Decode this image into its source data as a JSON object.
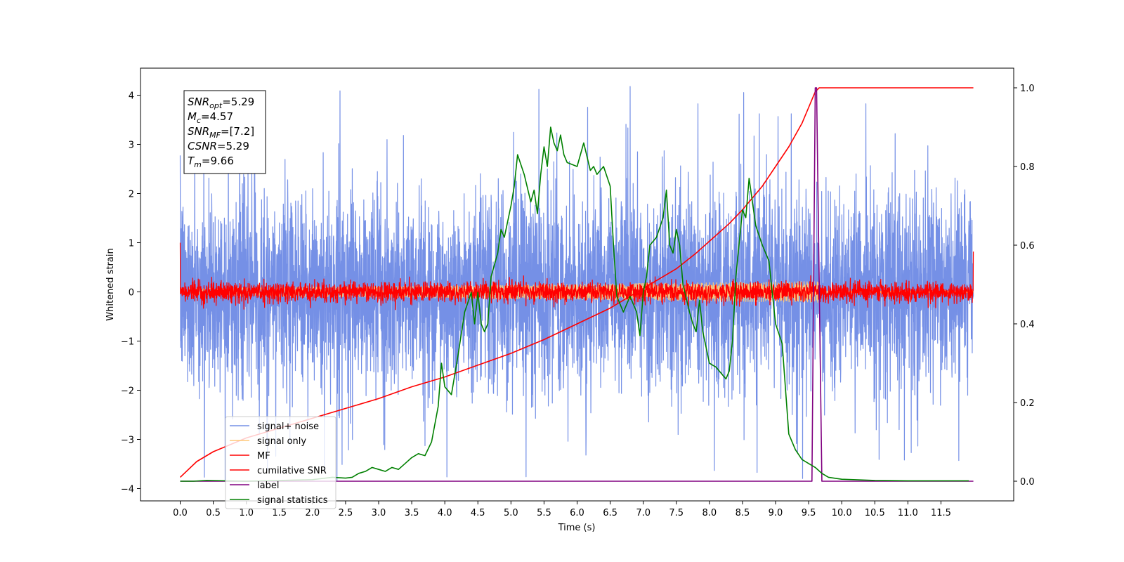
{
  "chart_data": {
    "type": "line",
    "xlabel": "Time (s)",
    "ylabel": "Whitened strain",
    "xlim": [
      -0.6,
      12.6
    ],
    "ylim": [
      -4.25,
      4.55
    ],
    "y2lim": [
      -0.05,
      1.05
    ],
    "x_ticks": [
      0.0,
      0.5,
      1.0,
      1.5,
      2.0,
      2.5,
      3.0,
      3.5,
      4.0,
      4.5,
      5.0,
      5.5,
      6.0,
      6.5,
      7.0,
      7.5,
      8.0,
      8.5,
      9.0,
      9.5,
      10.0,
      10.5,
      11.0,
      11.5
    ],
    "x_tick_labels": [
      "0.0",
      "0.5",
      "1.0",
      "1.5",
      "2.0",
      "2.5",
      "3.0",
      "3.5",
      "4.0",
      "4.5",
      "5.0",
      "5.5",
      "6.0",
      "6.5",
      "7.0",
      "7.5",
      "8.0",
      "8.5",
      "9.0",
      "9.5",
      "10.0",
      "10.5",
      "11.0",
      "11.5"
    ],
    "y_ticks": [
      -4,
      -3,
      -2,
      -1,
      0,
      1,
      2,
      3,
      4
    ],
    "y_tick_labels": [
      "−4",
      "−3",
      "−2",
      "−1",
      "0",
      "1",
      "2",
      "3",
      "4"
    ],
    "y2_ticks": [
      0.0,
      0.2,
      0.4,
      0.6,
      0.8,
      1.0
    ],
    "y2_tick_labels": [
      "0.0",
      "0.2",
      "0.4",
      "0.6",
      "0.8",
      "1.0"
    ],
    "grid": false,
    "legend_position": "lower-left",
    "stats_box": [
      {
        "base": "SNR",
        "sub": "opt",
        "value": "=5.29"
      },
      {
        "base": "M",
        "sub": "c",
        "value": "=4.57"
      },
      {
        "base": "SNR",
        "sub": "MF",
        "value": "=[7.2]"
      },
      {
        "base": "CSNR",
        "sub": "",
        "value": "=5.29"
      },
      {
        "base": "T",
        "sub": "m",
        "value": "=9.66"
      }
    ],
    "series": [
      {
        "name": "signal+ noise",
        "color": "#7590e6",
        "axis": "left",
        "kind": "noise",
        "x_range": [
          0.0,
          11.99
        ],
        "amplitude_std": 1.0,
        "spike_range": [
          -3.85,
          4.18
        ]
      },
      {
        "name": "signal only",
        "color": "#ffc878",
        "axis": "left",
        "kind": "chirp",
        "x_range": [
          0.0,
          11.99
        ],
        "amplitude": 0.22
      },
      {
        "name": "MF",
        "color": "#ff0000",
        "axis": "left",
        "kind": "noise",
        "x_range": [
          0.0,
          11.99
        ],
        "amplitude_std": 0.1,
        "endpoints": [
          1.0,
          0.82
        ]
      },
      {
        "name": "cumilative SNR",
        "color": "#ff0000",
        "axis": "right",
        "x": [
          0.0,
          0.25,
          0.5,
          1.0,
          1.5,
          2.0,
          2.5,
          3.0,
          3.5,
          4.0,
          4.5,
          5.0,
          5.5,
          6.0,
          6.5,
          7.0,
          7.5,
          7.8,
          8.0,
          8.3,
          8.5,
          8.8,
          9.0,
          9.2,
          9.4,
          9.5,
          9.6,
          9.66,
          10.0,
          11.0,
          11.99
        ],
        "y": [
          0.01,
          0.05,
          0.075,
          0.11,
          0.135,
          0.16,
          0.185,
          0.21,
          0.24,
          0.265,
          0.295,
          0.325,
          0.36,
          0.4,
          0.44,
          0.49,
          0.54,
          0.58,
          0.61,
          0.655,
          0.69,
          0.75,
          0.8,
          0.85,
          0.91,
          0.95,
          0.99,
          1.0,
          1.0,
          1.0,
          1.0
        ]
      },
      {
        "name": "label",
        "color": "#800080",
        "axis": "right",
        "x": [
          0.0,
          9.55,
          9.6,
          9.62,
          9.7,
          11.99
        ],
        "y": [
          0.0,
          0.0,
          1.0,
          1.0,
          0.0,
          0.0
        ]
      },
      {
        "name": "signal statistics",
        "color": "#008000",
        "axis": "right",
        "x": [
          0.0,
          0.2,
          0.4,
          1.0,
          1.5,
          2.0,
          2.3,
          2.5,
          2.6,
          2.7,
          2.8,
          2.9,
          3.0,
          3.1,
          3.2,
          3.3,
          3.4,
          3.5,
          3.6,
          3.7,
          3.8,
          3.9,
          3.95,
          4.0,
          4.05,
          4.1,
          4.15,
          4.2,
          4.3,
          4.4,
          4.45,
          4.5,
          4.55,
          4.6,
          4.65,
          4.7,
          4.8,
          4.85,
          4.9,
          4.95,
          5.0,
          5.05,
          5.1,
          5.2,
          5.3,
          5.35,
          5.4,
          5.45,
          5.5,
          5.55,
          5.6,
          5.65,
          5.7,
          5.75,
          5.8,
          5.85,
          6.0,
          6.1,
          6.2,
          6.25,
          6.3,
          6.4,
          6.5,
          6.55,
          6.6,
          6.7,
          6.8,
          6.9,
          6.95,
          7.0,
          7.05,
          7.1,
          7.2,
          7.3,
          7.35,
          7.4,
          7.45,
          7.5,
          7.55,
          7.6,
          7.7,
          7.75,
          7.8,
          7.85,
          7.9,
          8.0,
          8.1,
          8.2,
          8.25,
          8.3,
          8.35,
          8.4,
          8.5,
          8.55,
          8.6,
          8.7,
          8.8,
          8.9,
          9.0,
          9.1,
          9.2,
          9.3,
          9.4,
          9.5,
          9.6,
          9.7,
          9.8,
          10.0,
          10.5,
          11.0,
          11.92
        ],
        "y": [
          0.0,
          0.0,
          0.002,
          0.0,
          0.002,
          0.004,
          0.01,
          0.008,
          0.01,
          0.02,
          0.025,
          0.035,
          0.03,
          0.025,
          0.035,
          0.03,
          0.045,
          0.06,
          0.07,
          0.065,
          0.1,
          0.19,
          0.3,
          0.24,
          0.23,
          0.22,
          0.27,
          0.32,
          0.43,
          0.48,
          0.4,
          0.48,
          0.4,
          0.38,
          0.4,
          0.52,
          0.58,
          0.64,
          0.62,
          0.66,
          0.7,
          0.75,
          0.83,
          0.78,
          0.71,
          0.74,
          0.68,
          0.78,
          0.85,
          0.8,
          0.9,
          0.86,
          0.84,
          0.88,
          0.83,
          0.81,
          0.8,
          0.86,
          0.79,
          0.8,
          0.78,
          0.8,
          0.75,
          0.6,
          0.47,
          0.43,
          0.47,
          0.43,
          0.37,
          0.48,
          0.52,
          0.6,
          0.62,
          0.67,
          0.74,
          0.6,
          0.58,
          0.64,
          0.6,
          0.5,
          0.43,
          0.4,
          0.38,
          0.46,
          0.38,
          0.3,
          0.29,
          0.27,
          0.26,
          0.28,
          0.36,
          0.52,
          0.69,
          0.67,
          0.77,
          0.65,
          0.6,
          0.56,
          0.4,
          0.35,
          0.12,
          0.08,
          0.055,
          0.045,
          0.035,
          0.02,
          0.01,
          0.005,
          0.002,
          0.001,
          0.001
        ]
      }
    ]
  }
}
